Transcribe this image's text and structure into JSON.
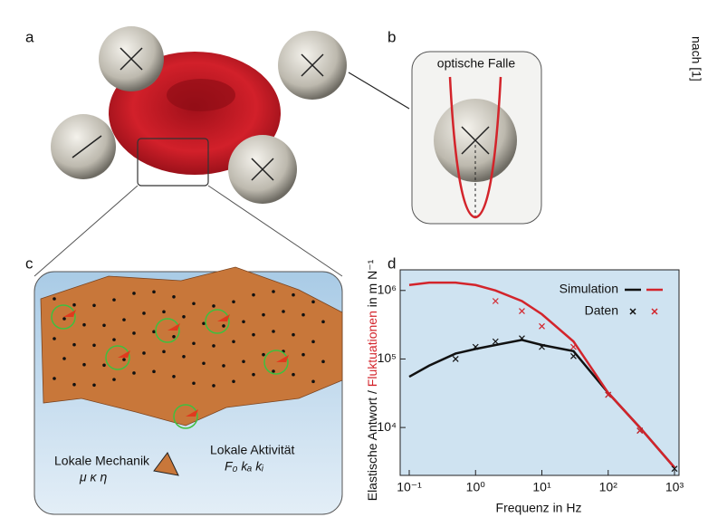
{
  "figure": {
    "panel_a": "a",
    "panel_b": "b",
    "panel_c": "c",
    "panel_d": "d",
    "trap_label": "optische Falle",
    "mechanics_label": "Lokale Mechanik",
    "mechanics_params": "μ κ η",
    "activity_label": "Lokale Aktivität",
    "activity_params": "F₀  kₐ  kᵢ",
    "source": "nach [1]"
  },
  "chart_data": {
    "type": "line",
    "log_x": true,
    "log_y": true,
    "x_label": "Frequenz in Hz",
    "y_label_parts": [
      {
        "text": "Elastische Antwort / ",
        "color": "#111111"
      },
      {
        "text": "Fluktuationen",
        "color": "#d3242b"
      },
      {
        "text": " in m N⁻¹",
        "color": "#111111"
      }
    ],
    "x": [
      0.1,
      0.2,
      0.5,
      1,
      2,
      5,
      10,
      30,
      100,
      300,
      1000
    ],
    "series": [
      {
        "name": "Simulation",
        "kind": "line",
        "parts": [
          {
            "color": "#111111",
            "values": [
              55000,
              80000,
              120000,
              140000,
              160000,
              190000,
              160000,
              130000,
              32000,
              10000,
              2600
            ]
          },
          {
            "color": "#d3242b",
            "values": [
              1200000,
              1300000,
              1300000,
              1200000,
              1000000,
              700000,
              450000,
              180000,
              32000,
              10000,
              2600
            ]
          }
        ]
      },
      {
        "name": "Daten",
        "kind": "points",
        "parts": [
          {
            "color": "#111111",
            "values": [
              null,
              null,
              100000,
              150000,
              180000,
              200000,
              150000,
              110000,
              30000,
              9000,
              2500
            ]
          },
          {
            "color": "#d3242b",
            "values": [
              null,
              null,
              null,
              null,
              700000,
              500000,
              300000,
              150000,
              30000,
              9000,
              null
            ]
          }
        ]
      }
    ],
    "xlim": [
      0.073,
      1170
    ],
    "ylim": [
      2000,
      2000000
    ],
    "xticks": [
      {
        "value": 0.1,
        "label": "10⁻¹"
      },
      {
        "value": 1,
        "label": "10⁰"
      },
      {
        "value": 10,
        "label": "10¹"
      },
      {
        "value": 100,
        "label": "10²"
      },
      {
        "value": 1000,
        "label": "10³"
      }
    ],
    "yticks": [
      {
        "value": 10000,
        "label": "10⁴"
      },
      {
        "value": 100000,
        "label": "10⁵"
      },
      {
        "value": 1000000,
        "label": "10⁶"
      }
    ],
    "background": "#cfe3f1"
  }
}
